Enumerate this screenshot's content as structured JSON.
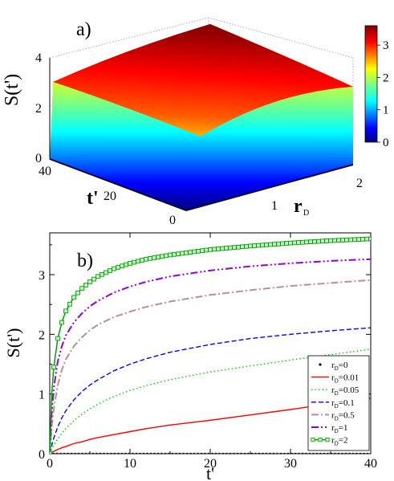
{
  "chart_data": [
    {
      "panel": "a)",
      "type": "surface3d",
      "zlabel": "S(t')",
      "xlabel": "t'",
      "ylabel": "r_D",
      "xlim": [
        0,
        40
      ],
      "ylim": [
        0,
        2
      ],
      "zlim": [
        0,
        4
      ],
      "x_ticks": [
        "0",
        "20",
        "40"
      ],
      "y_ticks": [
        "1",
        "2"
      ],
      "z_ticks": [
        "0",
        "2",
        "4"
      ],
      "colorbar": {
        "range": [
          0,
          3.6
        ],
        "ticks": [
          "0",
          "1",
          "2",
          "3"
        ]
      }
    },
    {
      "panel": "b)",
      "type": "line",
      "xlabel": "t'",
      "ylabel": "S(t')",
      "xlim": [
        0,
        40
      ],
      "ylim": [
        0,
        3.7
      ],
      "x_ticks": [
        "0",
        "10",
        "20",
        "30",
        "40"
      ],
      "y_ticks": [
        "0",
        "1",
        "2",
        "3"
      ],
      "legend_position": "bottom-right",
      "x": [
        0,
        0.25,
        0.5,
        1,
        1.5,
        2,
        3,
        4,
        5,
        6,
        8,
        10,
        12,
        15,
        20,
        25,
        30,
        35,
        40
      ],
      "series": [
        {
          "name": "r_D=0",
          "sub": "D",
          "label_pre": "r",
          "label_post": "=0",
          "color": "#000000",
          "style": "dots",
          "values": [
            0,
            0,
            0,
            0,
            0,
            0,
            0,
            0,
            0,
            0,
            0,
            0,
            0,
            0,
            0,
            0,
            0,
            0,
            0
          ]
        },
        {
          "name": "r_D=0.01",
          "sub": "D",
          "label_pre": "r",
          "label_post": "=0.01",
          "color": "#ff0000",
          "style": "solid",
          "values": [
            0,
            0.02,
            0.04,
            0.07,
            0.1,
            0.12,
            0.17,
            0.2,
            0.24,
            0.27,
            0.32,
            0.37,
            0.42,
            0.48,
            0.56,
            0.65,
            0.74,
            0.84,
            0.93
          ]
        },
        {
          "name": "r_D=0.05",
          "sub": "D",
          "label_pre": "r",
          "label_post": "=0.05",
          "color": "#00cc00",
          "style": "dotted",
          "values": [
            0,
            0.08,
            0.14,
            0.25,
            0.34,
            0.42,
            0.55,
            0.66,
            0.75,
            0.83,
            0.96,
            1.06,
            1.14,
            1.24,
            1.37,
            1.47,
            1.57,
            1.66,
            1.75
          ]
        },
        {
          "name": "r_D=0.1",
          "sub": "D",
          "label_pre": "r",
          "label_post": "=0.1",
          "color": "#0000ff",
          "style": "dashed",
          "values": [
            0,
            0.14,
            0.26,
            0.45,
            0.6,
            0.72,
            0.9,
            1.04,
            1.15,
            1.24,
            1.39,
            1.5,
            1.59,
            1.7,
            1.83,
            1.93,
            2.0,
            2.06,
            2.11
          ]
        },
        {
          "name": "r_D=0.5",
          "sub": "D",
          "label_pre": "r",
          "label_post": "=0.5",
          "color": "#bc8f8f",
          "style": "dashdot",
          "values": [
            0,
            0.45,
            0.75,
            1.15,
            1.4,
            1.58,
            1.8,
            1.95,
            2.07,
            2.16,
            2.29,
            2.38,
            2.46,
            2.55,
            2.66,
            2.74,
            2.81,
            2.86,
            2.91
          ]
        },
        {
          "name": "r_D=1",
          "sub": "D",
          "label_pre": "r",
          "label_post": "=1",
          "color": "#9400d3",
          "style": "dashdotdot",
          "values": [
            0,
            0.7,
            1.1,
            1.55,
            1.8,
            1.98,
            2.2,
            2.35,
            2.47,
            2.56,
            2.7,
            2.8,
            2.88,
            2.97,
            3.07,
            3.14,
            3.19,
            3.23,
            3.26
          ]
        },
        {
          "name": "r_D=2",
          "sub": "D",
          "label_pre": "r",
          "label_post": "=2",
          "color": "#00a000",
          "style": "squares",
          "values": [
            0,
            1.0,
            1.45,
            1.93,
            2.2,
            2.39,
            2.62,
            2.77,
            2.88,
            2.97,
            3.1,
            3.19,
            3.26,
            3.33,
            3.42,
            3.48,
            3.53,
            3.57,
            3.6
          ]
        }
      ]
    }
  ]
}
